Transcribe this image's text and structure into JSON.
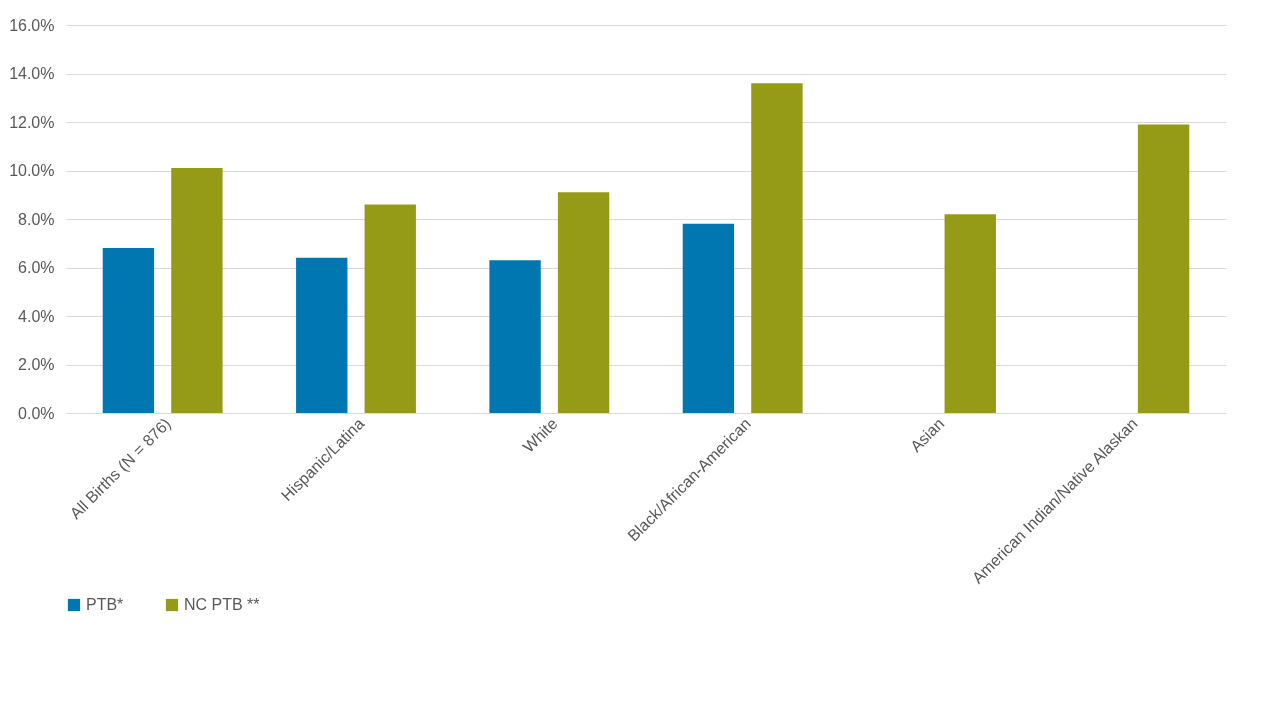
{
  "chart_data": {
    "type": "bar",
    "categories": [
      "All Births (N = 876)",
      "Hispanic/Latina",
      "White",
      "Black/African-American",
      "Asian",
      "American Indian/Native Alaskan"
    ],
    "series": [
      {
        "name": "PTB*",
        "color": "#0077b0",
        "values": [
          6.8,
          6.4,
          6.3,
          7.8,
          null,
          null
        ]
      },
      {
        "name": "NC PTB **",
        "color": "#959a17",
        "values": [
          10.1,
          8.6,
          9.1,
          13.6,
          8.2,
          11.9
        ]
      }
    ],
    "ylim": [
      0,
      16
    ],
    "yticks": [
      {
        "value": 0,
        "label": "0.0%"
      },
      {
        "value": 2,
        "label": "2.0%"
      },
      {
        "value": 4,
        "label": "4.0%"
      },
      {
        "value": 6,
        "label": "6.0%"
      },
      {
        "value": 8,
        "label": "8.0%"
      },
      {
        "value": 10,
        "label": "10.0%"
      },
      {
        "value": 12,
        "label": "12.0%"
      },
      {
        "value": 14,
        "label": "14.0%"
      },
      {
        "value": 16,
        "label": "16.0%"
      }
    ],
    "grid": "y",
    "legend": "bottom"
  }
}
